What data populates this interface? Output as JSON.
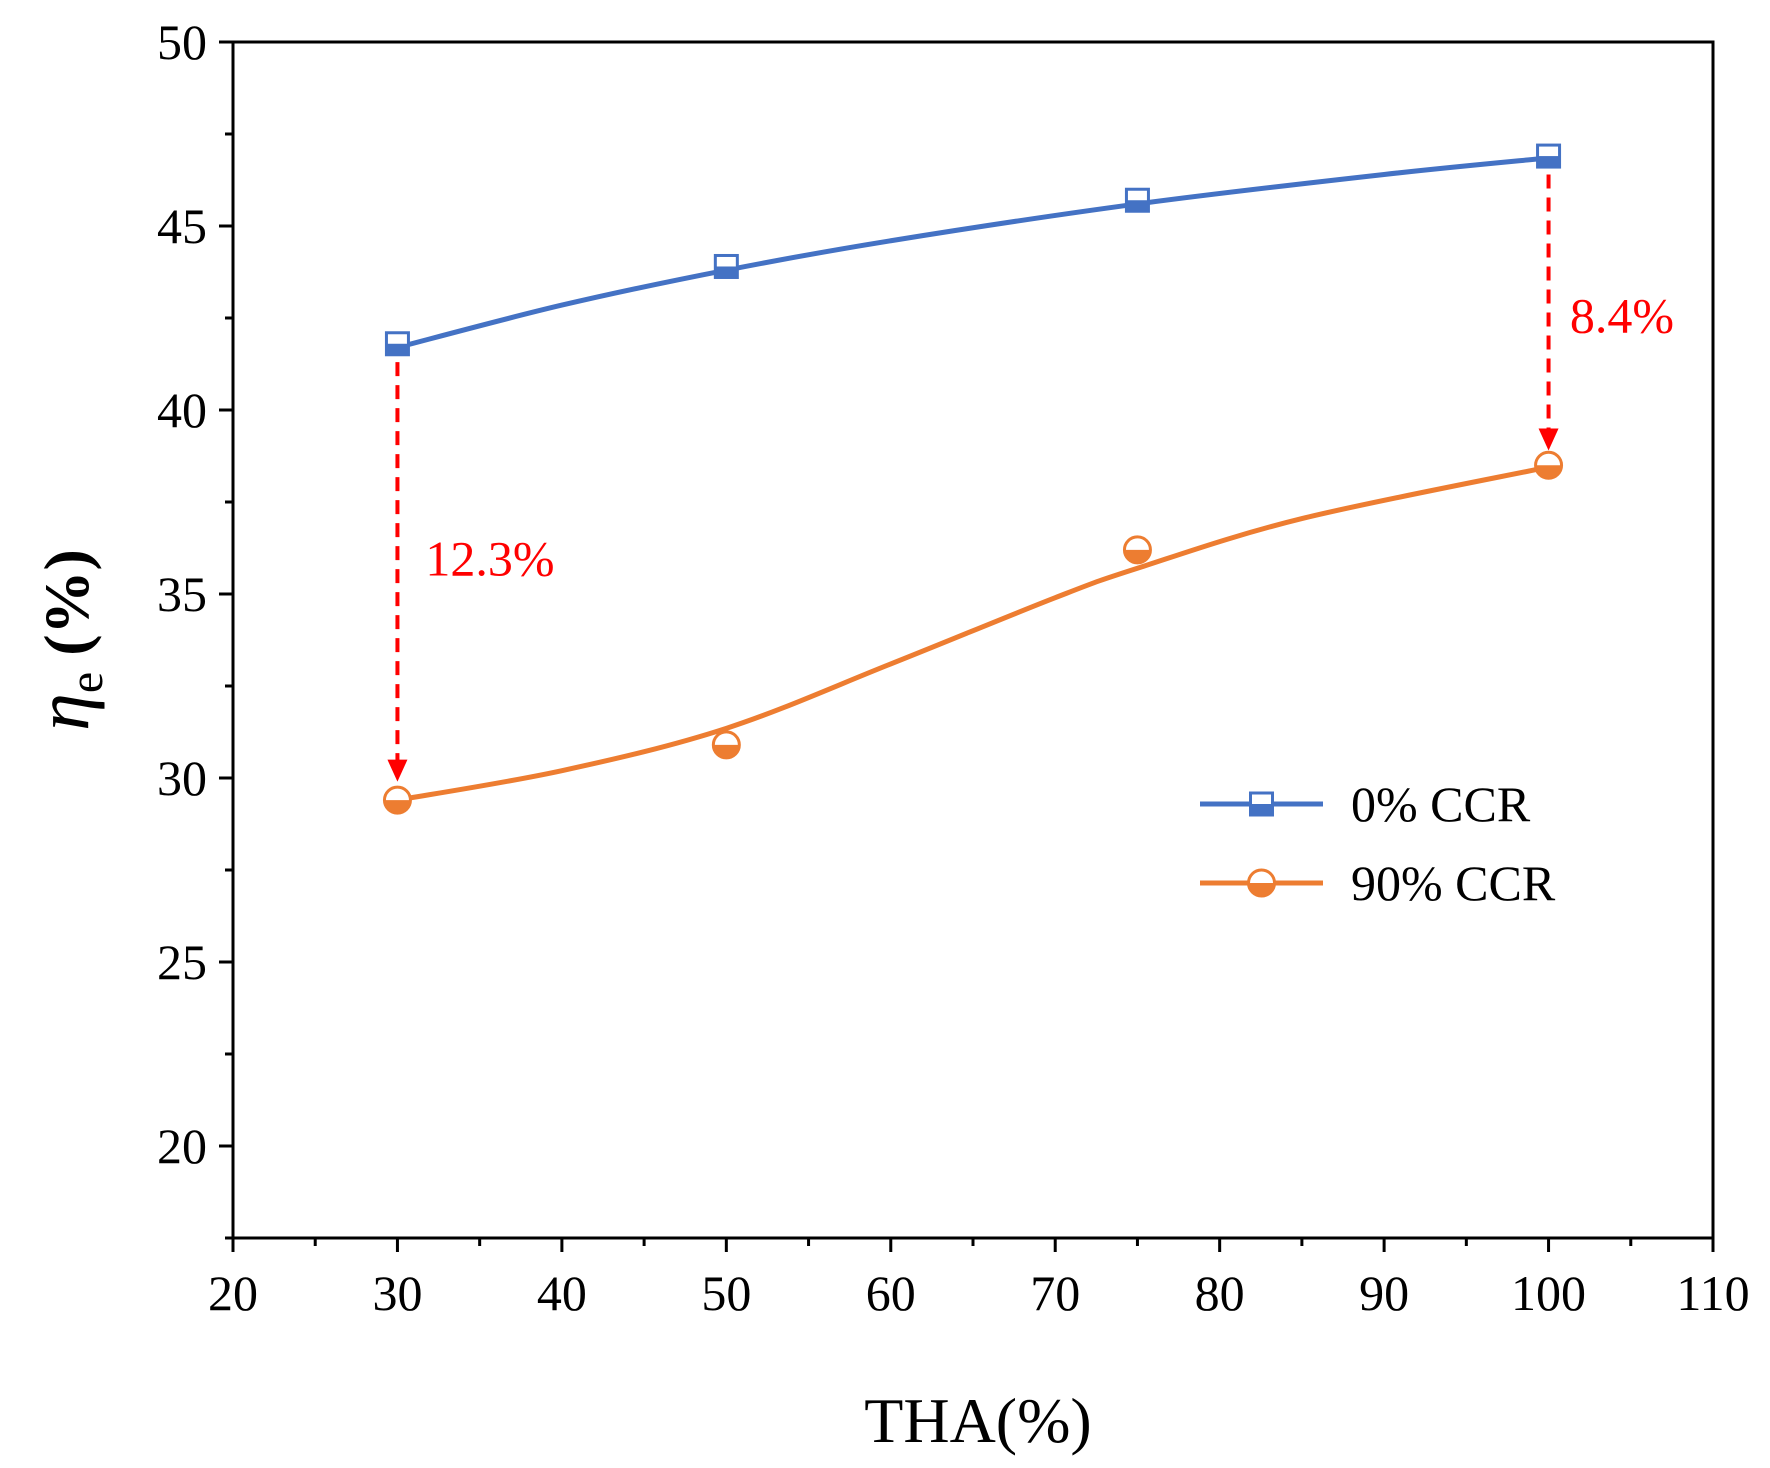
{
  "chart_data": {
    "type": "line",
    "xlabel": "THA(%)",
    "ylabel": {
      "symbol": "η",
      "subscript": "e",
      "unit": " (%)"
    },
    "xlim": [
      20,
      110
    ],
    "ylim": [
      17.5,
      50
    ],
    "x_ticks": [
      "20",
      "30",
      "40",
      "50",
      "60",
      "70",
      "80",
      "90",
      "100",
      "110"
    ],
    "y_ticks": [
      "20",
      "25",
      "30",
      "35",
      "40",
      "45",
      "50"
    ],
    "x": [
      30,
      50,
      75,
      100
    ],
    "series": [
      {
        "name": "0% CCR",
        "color": "#4472c4",
        "marker": "square-half",
        "values": [
          41.8,
          43.9,
          45.7,
          46.9
        ]
      },
      {
        "name": "90% CCR",
        "color": "#ed7d31",
        "marker": "circle-half",
        "values": [
          29.4,
          30.9,
          36.2,
          38.5
        ]
      }
    ],
    "fit_lines": [
      {
        "series": "0% CCR",
        "points": [
          [
            30,
            41.7
          ],
          [
            40,
            42.85
          ],
          [
            50,
            43.8
          ],
          [
            60,
            44.6
          ],
          [
            75,
            45.6
          ],
          [
            90,
            46.4
          ],
          [
            100,
            46.85
          ]
        ]
      },
      {
        "series": "90% CCR",
        "points": [
          [
            30,
            29.4
          ],
          [
            40,
            30.2
          ],
          [
            50,
            31.35
          ],
          [
            60,
            33.1
          ],
          [
            70,
            34.9
          ],
          [
            75,
            35.7
          ],
          [
            85,
            37.05
          ],
          [
            100,
            38.45
          ]
        ]
      }
    ],
    "annotations": [
      {
        "text": "12.3%",
        "color": "#ff0000",
        "arrow_x": 30,
        "arrow_from": 41.3,
        "arrow_to": 29.9,
        "label_x": 31.7,
        "label_y": 35.5
      },
      {
        "text": "8.4%",
        "color": "#ff0000",
        "arrow_x": 100,
        "arrow_from": 46.4,
        "arrow_to": 38.9,
        "label_x": 101.3,
        "label_y": 42.1
      }
    ],
    "legend_position": "center-right"
  }
}
